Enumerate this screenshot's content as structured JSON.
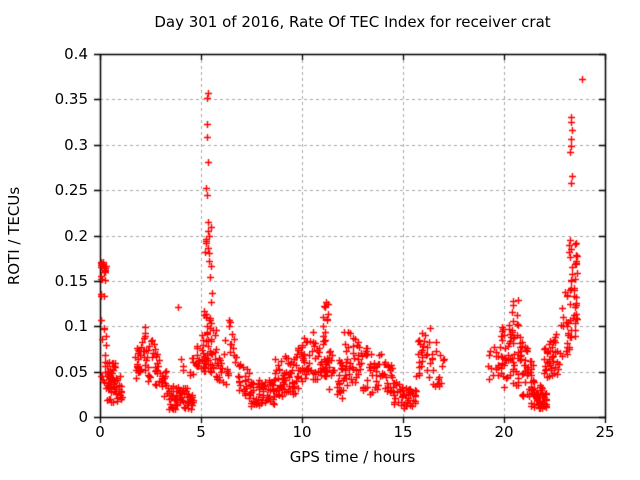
{
  "figure": {
    "background": "#ffffff",
    "frame_color": "#000000",
    "text_color": "#000000"
  },
  "chart_data": {
    "type": "scatter",
    "title": "Day 301 of 2016, Rate Of TEC Index for receiver crat",
    "xlabel": "GPS time / hours",
    "ylabel": "ROTI / TECUs",
    "xlim": [
      0,
      25
    ],
    "ylim": [
      0,
      0.4
    ],
    "xticks": [
      0,
      5,
      10,
      15,
      20,
      25
    ],
    "xtick_labels": [
      "0",
      "5",
      "10",
      "15",
      "20",
      "25"
    ],
    "yticks": [
      0,
      0.05,
      0.1,
      0.15,
      0.2,
      0.25,
      0.3,
      0.35,
      0.4
    ],
    "ytick_labels": [
      "0",
      "0.05",
      "0.1",
      "0.15",
      "0.2",
      "0.25",
      "0.3",
      "0.35",
      "0.4"
    ],
    "grid": true,
    "legend": "none",
    "marker": "plus",
    "marker_color": "#ff0000",
    "grid_color": "#a8a8a8",
    "seed": 301,
    "cluster_fields": [
      "x_start",
      "x_end",
      "y_min_start",
      "y_max_start",
      "y_min_end",
      "y_max_end",
      "count",
      "bias"
    ],
    "clusters": [
      [
        0.02,
        0.28,
        0.148,
        0.176,
        0.148,
        0.176,
        16,
        "u"
      ],
      [
        0.03,
        0.22,
        0.128,
        0.142,
        0.128,
        0.142,
        3,
        "u"
      ],
      [
        0.02,
        0.35,
        0.055,
        0.108,
        0.055,
        0.108,
        9,
        "u"
      ],
      [
        0.05,
        0.75,
        0.028,
        0.062,
        0.028,
        0.062,
        32,
        "u"
      ],
      [
        0.35,
        1.15,
        0.016,
        0.05,
        0.016,
        0.05,
        38,
        "u"
      ],
      [
        1.75,
        2.35,
        0.04,
        0.075,
        0.05,
        0.108,
        32,
        "u"
      ],
      [
        2.35,
        2.95,
        0.035,
        0.095,
        0.03,
        0.07,
        26,
        "u"
      ],
      [
        2.95,
        3.35,
        0.025,
        0.06,
        0.02,
        0.05,
        14,
        "u"
      ],
      [
        3.35,
        4.6,
        0.008,
        0.034,
        0.008,
        0.034,
        62,
        "u"
      ],
      [
        3.95,
        4.15,
        0.05,
        0.072,
        0.05,
        0.072,
        3,
        "u"
      ],
      [
        4.45,
        5.05,
        0.042,
        0.07,
        0.055,
        0.095,
        18,
        "u"
      ],
      [
        5.05,
        5.55,
        0.05,
        0.16,
        0.05,
        0.185,
        55,
        "low"
      ],
      [
        5.15,
        5.5,
        0.16,
        0.225,
        0.16,
        0.225,
        11,
        "u"
      ],
      [
        5.55,
        6.35,
        0.045,
        0.125,
        0.035,
        0.08,
        30,
        "low"
      ],
      [
        6.35,
        6.65,
        0.06,
        0.112,
        0.06,
        0.09,
        8,
        "u"
      ],
      [
        6.6,
        7.45,
        0.03,
        0.075,
        0.02,
        0.05,
        30,
        "u"
      ],
      [
        7.45,
        8.65,
        0.012,
        0.042,
        0.012,
        0.042,
        62,
        "u"
      ],
      [
        8.65,
        9.7,
        0.018,
        0.065,
        0.025,
        0.07,
        55,
        "u"
      ],
      [
        9.7,
        10.45,
        0.03,
        0.08,
        0.04,
        0.095,
        38,
        "u"
      ],
      [
        10.45,
        11.35,
        0.04,
        0.1,
        0.045,
        0.118,
        48,
        "low"
      ],
      [
        10.95,
        11.3,
        0.1,
        0.128,
        0.1,
        0.128,
        7,
        "u"
      ],
      [
        11.35,
        12.05,
        0.03,
        0.075,
        0.02,
        0.06,
        26,
        "u"
      ],
      [
        12.05,
        12.85,
        0.035,
        0.1,
        0.035,
        0.085,
        38,
        "u"
      ],
      [
        12.85,
        13.7,
        0.025,
        0.082,
        0.025,
        0.07,
        32,
        "u"
      ],
      [
        13.7,
        14.5,
        0.03,
        0.08,
        0.025,
        0.065,
        30,
        "u"
      ],
      [
        14.5,
        15.65,
        0.01,
        0.04,
        0.01,
        0.032,
        50,
        "u"
      ],
      [
        15.65,
        16.35,
        0.03,
        0.08,
        0.045,
        0.112,
        26,
        "u"
      ],
      [
        16.35,
        17.1,
        0.035,
        0.1,
        0.03,
        0.062,
        18,
        "u"
      ],
      [
        19.1,
        19.75,
        0.04,
        0.078,
        0.04,
        0.078,
        15,
        "u"
      ],
      [
        19.75,
        20.75,
        0.03,
        0.1,
        0.035,
        0.108,
        58,
        "u"
      ],
      [
        20.35,
        20.7,
        0.1,
        0.13,
        0.1,
        0.13,
        5,
        "u"
      ],
      [
        20.75,
        21.45,
        0.02,
        0.095,
        0.015,
        0.06,
        42,
        "u"
      ],
      [
        21.35,
        22.1,
        0.01,
        0.045,
        0.007,
        0.028,
        58,
        "u"
      ],
      [
        21.95,
        22.85,
        0.035,
        0.075,
        0.05,
        0.105,
        42,
        "u"
      ],
      [
        22.85,
        23.65,
        0.06,
        0.13,
        0.09,
        0.185,
        48,
        "u"
      ],
      [
        23.2,
        23.62,
        0.13,
        0.2,
        0.145,
        0.2,
        14,
        "u"
      ]
    ],
    "outliers": [
      [
        3.88,
        0.121
      ],
      [
        5.24,
        0.196
      ],
      [
        5.37,
        0.205
      ],
      [
        5.3,
        0.245
      ],
      [
        5.27,
        0.252
      ],
      [
        5.33,
        0.281
      ],
      [
        5.29,
        0.309
      ],
      [
        5.28,
        0.323
      ],
      [
        5.3,
        0.352
      ],
      [
        5.33,
        0.357
      ],
      [
        6.43,
        0.105
      ],
      [
        11.1,
        0.122
      ],
      [
        11.18,
        0.127
      ],
      [
        20.45,
        0.128
      ],
      [
        23.3,
        0.258
      ],
      [
        23.37,
        0.266
      ],
      [
        23.28,
        0.292
      ],
      [
        23.33,
        0.299
      ],
      [
        23.31,
        0.306
      ],
      [
        23.36,
        0.316
      ],
      [
        23.3,
        0.325
      ],
      [
        23.34,
        0.331
      ],
      [
        23.85,
        0.373
      ]
    ]
  }
}
